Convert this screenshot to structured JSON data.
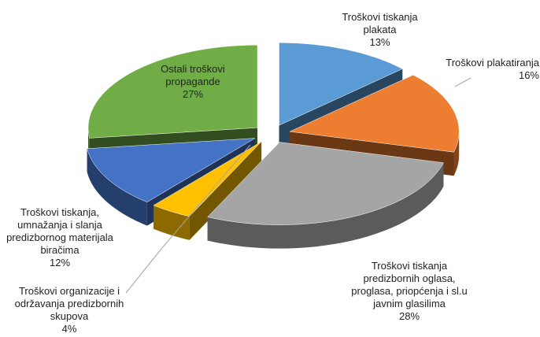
{
  "chart_data": {
    "type": "pie3d",
    "categories": [
      "Troškovi tiskanja plakata",
      "Troškovi plakatiranja",
      "Troškovi tiskanja predizbornih oglasa, proglasa, priopćenja i sl.u javnim glasilima",
      "Troškovi organizacije i održavanja predizbornih skupova",
      "Troškovi tiskanja, umnažanja i slanja predizbornog materijala biračima",
      "Ostali troškovi propagande"
    ],
    "values": [
      13,
      16,
      28,
      4,
      12,
      27
    ],
    "value_labels": [
      "13%",
      "16%",
      "28%",
      "4%",
      "12%",
      "27%"
    ],
    "colors": [
      "#5b9bd5",
      "#ed7d31",
      "#a5a5a5",
      "#ffc000",
      "#4472c4",
      "#70ad47"
    ]
  }
}
